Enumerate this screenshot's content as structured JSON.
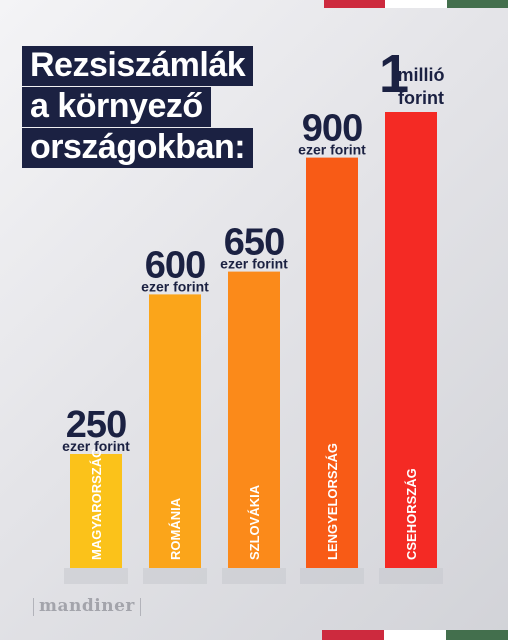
{
  "title_lines": [
    "Rezsiszámlák",
    "a környező",
    "országokban:"
  ],
  "brand": "mandiner",
  "colors": {
    "navy": "#1b2142",
    "flag_red": "#cd2a3e",
    "flag_white": "#ffffff",
    "flag_green": "#436f4d"
  },
  "chart_data": {
    "type": "bar",
    "title": "Rezsiszámlák a környező országokban:",
    "unit": "forint",
    "categories": [
      "MAGYARORSZÁG",
      "ROMÁNIA",
      "SZLOVÁKIA",
      "LENGYELORSZÁG",
      "CSEHORSZÁG"
    ],
    "values": [
      250000,
      600000,
      650000,
      900000,
      1000000
    ],
    "value_labels": [
      {
        "number": "250",
        "unit": "ezer forint"
      },
      {
        "number": "600",
        "unit": "ezer forint"
      },
      {
        "number": "650",
        "unit": "ezer forint"
      },
      {
        "number": "900",
        "unit": "ezer forint"
      },
      {
        "number": "1",
        "unit_top": "millió",
        "unit": "forint"
      }
    ],
    "bar_colors": [
      "#fbc21a",
      "#fba51a",
      "#fb8a1a",
      "#f85b16",
      "#f42a24"
    ],
    "ylim": [
      0,
      1000000
    ],
    "grid": false,
    "legend": "none"
  }
}
